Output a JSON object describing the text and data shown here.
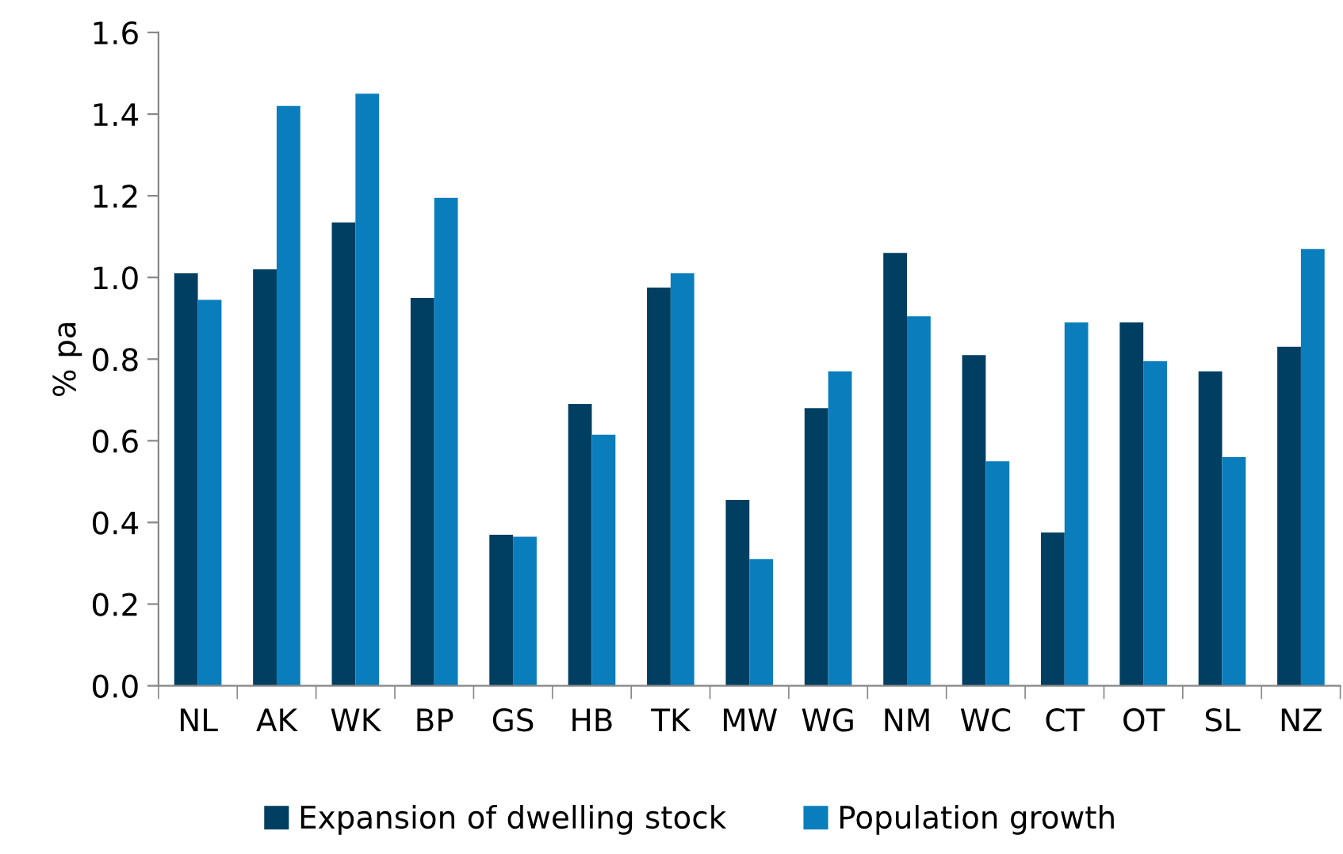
{
  "chart_data": {
    "type": "bar",
    "ylabel": "% pa",
    "categories": [
      "NL",
      "AK",
      "WK",
      "BP",
      "GS",
      "HB",
      "TK",
      "MW",
      "WG",
      "NM",
      "WC",
      "CT",
      "OT",
      "SL",
      "NZ"
    ],
    "series": [
      {
        "name": "Expansion of dwelling stock",
        "color": "#003f62",
        "values": [
          1.01,
          1.02,
          1.135,
          0.95,
          0.37,
          0.69,
          0.975,
          0.455,
          0.68,
          1.06,
          0.81,
          0.375,
          0.89,
          0.77,
          0.83
        ]
      },
      {
        "name": "Population growth",
        "color": "#0a7dbd",
        "values": [
          0.945,
          1.42,
          1.45,
          1.195,
          0.365,
          0.615,
          1.01,
          0.31,
          0.77,
          0.905,
          0.55,
          0.89,
          0.795,
          0.56,
          1.07
        ]
      }
    ],
    "ylim": [
      0,
      1.6
    ],
    "yticks": [
      {
        "value": 0,
        "label": "0.0"
      },
      {
        "value": 0.2,
        "label": "0.2"
      },
      {
        "value": 0.4,
        "label": "0.4"
      },
      {
        "value": 0.6,
        "label": "0.6"
      },
      {
        "value": 0.8,
        "label": "0.8"
      },
      {
        "value": 1.0,
        "label": "1.0"
      },
      {
        "value": 1.2,
        "label": "1.2"
      },
      {
        "value": 1.4,
        "label": "1.4"
      },
      {
        "value": 1.6,
        "label": "1.6"
      }
    ],
    "grid": false,
    "legend": "bottom"
  }
}
